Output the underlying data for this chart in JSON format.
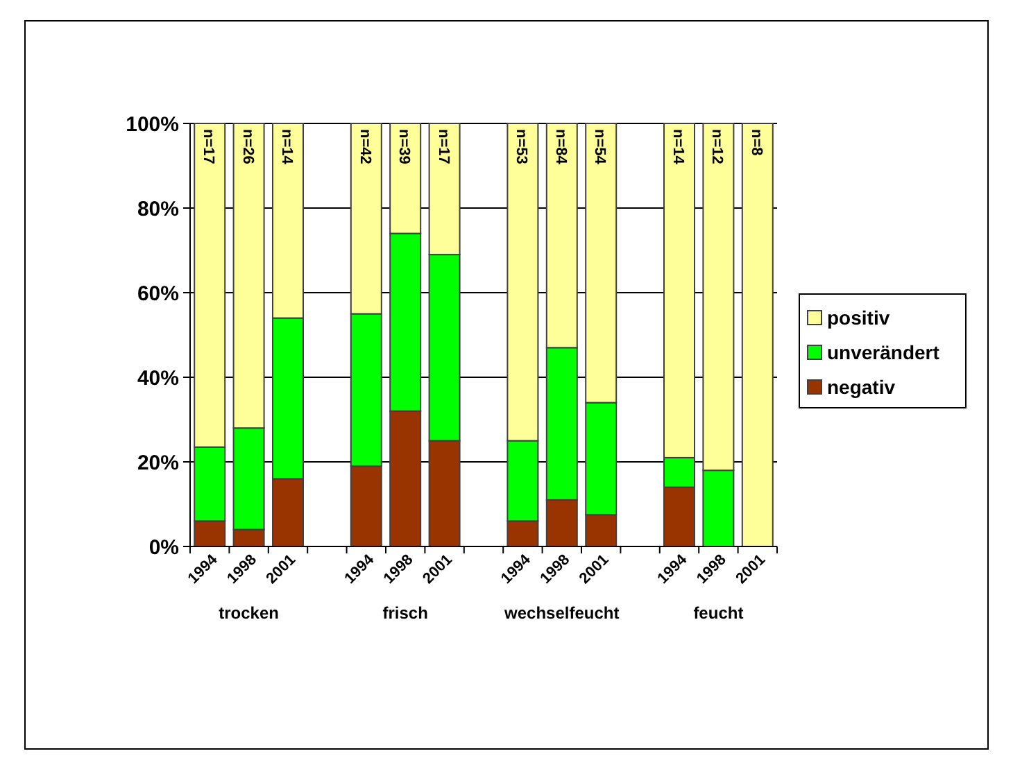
{
  "chart_data": {
    "type": "bar",
    "stacked": true,
    "categories": [
      "1994",
      "1998",
      "2001",
      null,
      "1994",
      "1998",
      "2001",
      null,
      "1994",
      "1998",
      "2001",
      null,
      "1994",
      "1998",
      "2001"
    ],
    "series": [
      {
        "name": "negativ",
        "color": "#993300",
        "values": [
          6,
          4,
          16,
          null,
          19,
          32,
          25,
          null,
          6,
          11,
          7.5,
          null,
          14,
          0,
          0
        ]
      },
      {
        "name": "unverändert",
        "color": "#00ff00",
        "values": [
          17.5,
          24,
          38,
          null,
          36,
          42,
          44,
          null,
          19,
          36,
          26.5,
          null,
          7,
          18,
          0
        ]
      },
      {
        "name": "positiv",
        "color": "#ffff99",
        "values": [
          76.5,
          72,
          46,
          null,
          45,
          26,
          31,
          null,
          75,
          53,
          66,
          null,
          79,
          82,
          100
        ]
      }
    ],
    "ylim": [
      0,
      100
    ],
    "yticks": [
      {
        "value": 0,
        "label": "0%"
      },
      {
        "value": 20,
        "label": "20%"
      },
      {
        "value": 40,
        "label": "40%"
      },
      {
        "value": 60,
        "label": "60%"
      },
      {
        "value": 80,
        "label": "80%"
      },
      {
        "value": 100,
        "label": "100%"
      }
    ],
    "grid": "y",
    "legend": "right",
    "annotations": [
      "trocken",
      "frisch",
      "wechselfeucht",
      "feucht",
      "n=17",
      "n=26",
      "n=14",
      "n=42",
      "n=39",
      "n=17",
      "n=53",
      "n=84",
      "n=54",
      "n=14",
      "n=12",
      "n=8"
    ]
  }
}
